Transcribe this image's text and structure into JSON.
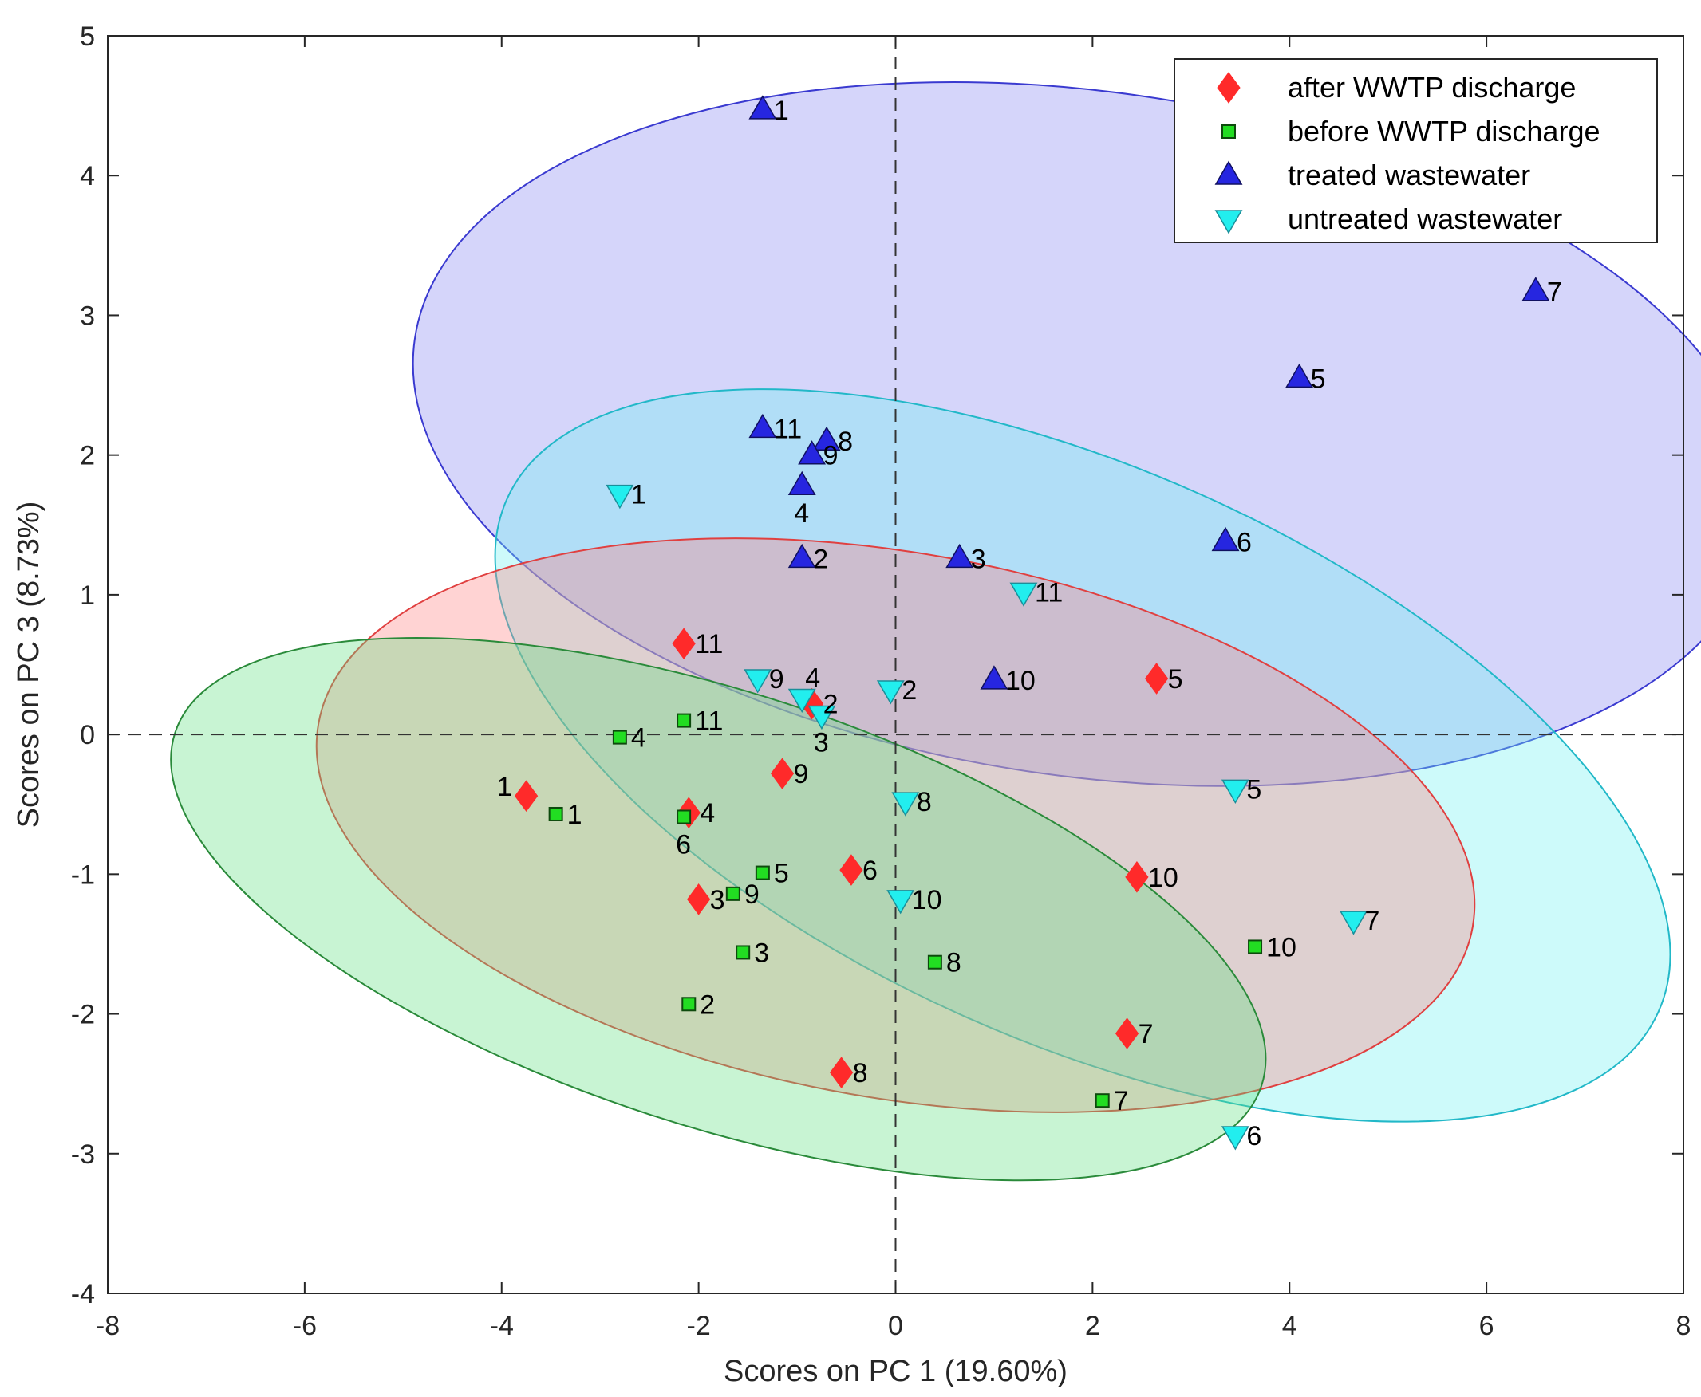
{
  "chart_data": {
    "type": "scatter",
    "xlabel": "Scores on PC 1 (19.60%)",
    "ylabel": "Scores on PC 3 (8.73%)",
    "xlim": [
      -8,
      8
    ],
    "ylim": [
      -4,
      5
    ],
    "xticks": [
      -8,
      -6,
      -4,
      -2,
      0,
      2,
      4,
      6,
      8
    ],
    "yticks": [
      -4,
      -3,
      -2,
      -1,
      0,
      1,
      2,
      3,
      4,
      5
    ],
    "reference_lines": {
      "x": 0,
      "y": 0,
      "style": "dashed"
    },
    "legend_position": "top-right",
    "series": [
      {
        "name": "after WWTP discharge",
        "marker": "diamond",
        "color": "#ff2a2a",
        "ellipse_fill": "#ff8080",
        "ellipse_stroke": "#e04040",
        "ellipse": {
          "cx": 0.0,
          "cy": -0.65,
          "rx": 5.95,
          "ry": 1.95,
          "angle": -10
        },
        "points": [
          {
            "x": -3.75,
            "y": -0.44,
            "label": "1",
            "pos": "left"
          },
          {
            "x": -0.85,
            "y": 0.22,
            "label": "2",
            "pos": "right"
          },
          {
            "x": -2.0,
            "y": -1.18,
            "label": "3",
            "pos": "right"
          },
          {
            "x": -2.1,
            "y": -0.56,
            "label": "4",
            "pos": "right"
          },
          {
            "x": 2.65,
            "y": 0.4,
            "label": "5",
            "pos": "right"
          },
          {
            "x": -0.45,
            "y": -0.97,
            "label": "6",
            "pos": "right"
          },
          {
            "x": 2.35,
            "y": -2.14,
            "label": "7",
            "pos": "right"
          },
          {
            "x": -0.55,
            "y": -2.42,
            "label": "8",
            "pos": "right"
          },
          {
            "x": -1.15,
            "y": -0.28,
            "label": "9",
            "pos": "right"
          },
          {
            "x": 2.45,
            "y": -1.02,
            "label": "10",
            "pos": "right"
          },
          {
            "x": -2.15,
            "y": 0.65,
            "label": "11",
            "pos": "right"
          }
        ]
      },
      {
        "name": "before WWTP discharge",
        "marker": "square",
        "color": "#22dd22",
        "ellipse_fill": "#60e080",
        "ellipse_stroke": "#2a8a3a",
        "ellipse": {
          "cx": -1.8,
          "cy": -1.25,
          "rx": 5.8,
          "ry": 1.55,
          "angle": -18
        },
        "points": [
          {
            "x": -3.45,
            "y": -0.57,
            "label": "1",
            "pos": "right"
          },
          {
            "x": -2.1,
            "y": -1.93,
            "label": "2",
            "pos": "right"
          },
          {
            "x": -1.55,
            "y": -1.56,
            "label": "3",
            "pos": "right"
          },
          {
            "x": -2.8,
            "y": -0.02,
            "label": "4",
            "pos": "right"
          },
          {
            "x": -1.35,
            "y": -0.99,
            "label": "5",
            "pos": "right"
          },
          {
            "x": -2.15,
            "y": -0.59,
            "label": "6",
            "pos": "below"
          },
          {
            "x": 2.1,
            "y": -2.62,
            "label": "7",
            "pos": "right"
          },
          {
            "x": 0.4,
            "y": -1.63,
            "label": "8",
            "pos": "right"
          },
          {
            "x": -1.65,
            "y": -1.14,
            "label": "9",
            "pos": "right"
          },
          {
            "x": 3.65,
            "y": -1.52,
            "label": "10",
            "pos": "right"
          },
          {
            "x": -2.15,
            "y": 0.1,
            "label": "11",
            "pos": "right"
          }
        ]
      },
      {
        "name": "treated wastewater",
        "marker": "triangle-up",
        "color": "#2626e0",
        "ellipse_fill": "#8888f0",
        "ellipse_stroke": "#3a3ad0",
        "ellipse": {
          "cx": 1.95,
          "cy": 2.15,
          "rx": 6.9,
          "ry": 2.45,
          "angle": -8
        },
        "points": [
          {
            "x": -1.35,
            "y": 4.47,
            "label": "1",
            "pos": "right"
          },
          {
            "x": -0.95,
            "y": 1.26,
            "label": "2",
            "pos": "right"
          },
          {
            "x": 0.65,
            "y": 1.26,
            "label": "3",
            "pos": "right"
          },
          {
            "x": -0.95,
            "y": 1.78,
            "label": "4",
            "pos": "below"
          },
          {
            "x": 4.1,
            "y": 2.55,
            "label": "5",
            "pos": "right"
          },
          {
            "x": 3.35,
            "y": 1.38,
            "label": "6",
            "pos": "right"
          },
          {
            "x": 6.5,
            "y": 3.17,
            "label": "7",
            "pos": "right"
          },
          {
            "x": -0.7,
            "y": 2.1,
            "label": "8",
            "pos": "right"
          },
          {
            "x": -0.85,
            "y": 2.0,
            "label": "9",
            "pos": "right"
          },
          {
            "x": 1.0,
            "y": 0.39,
            "label": "10",
            "pos": "right"
          },
          {
            "x": -1.35,
            "y": 2.19,
            "label": "11",
            "pos": "right"
          }
        ]
      },
      {
        "name": "untreated wastewater",
        "marker": "triangle-down",
        "color": "#22eeee",
        "ellipse_fill": "#70f0f0",
        "ellipse_stroke": "#22b8c8",
        "ellipse": {
          "cx": 1.9,
          "cy": -0.15,
          "rx": 6.4,
          "ry": 2.05,
          "angle": -24
        },
        "points": [
          {
            "x": -2.8,
            "y": 1.72,
            "label": "1",
            "pos": "right"
          },
          {
            "x": -0.05,
            "y": 0.32,
            "label": "2",
            "pos": "right"
          },
          {
            "x": -0.75,
            "y": 0.14,
            "label": "3",
            "pos": "below"
          },
          {
            "x": -0.95,
            "y": 0.26,
            "label": "4",
            "pos": "above"
          },
          {
            "x": 3.45,
            "y": -0.39,
            "label": "5",
            "pos": "right"
          },
          {
            "x": 3.45,
            "y": -2.87,
            "label": "6",
            "pos": "right"
          },
          {
            "x": 4.65,
            "y": -1.33,
            "label": "7",
            "pos": "right"
          },
          {
            "x": 0.1,
            "y": -0.48,
            "label": "8",
            "pos": "right"
          },
          {
            "x": -1.4,
            "y": 0.4,
            "label": "9",
            "pos": "right"
          },
          {
            "x": 0.05,
            "y": -1.18,
            "label": "10",
            "pos": "right"
          },
          {
            "x": 1.3,
            "y": 1.02,
            "label": "11",
            "pos": "right"
          }
        ]
      }
    ]
  }
}
